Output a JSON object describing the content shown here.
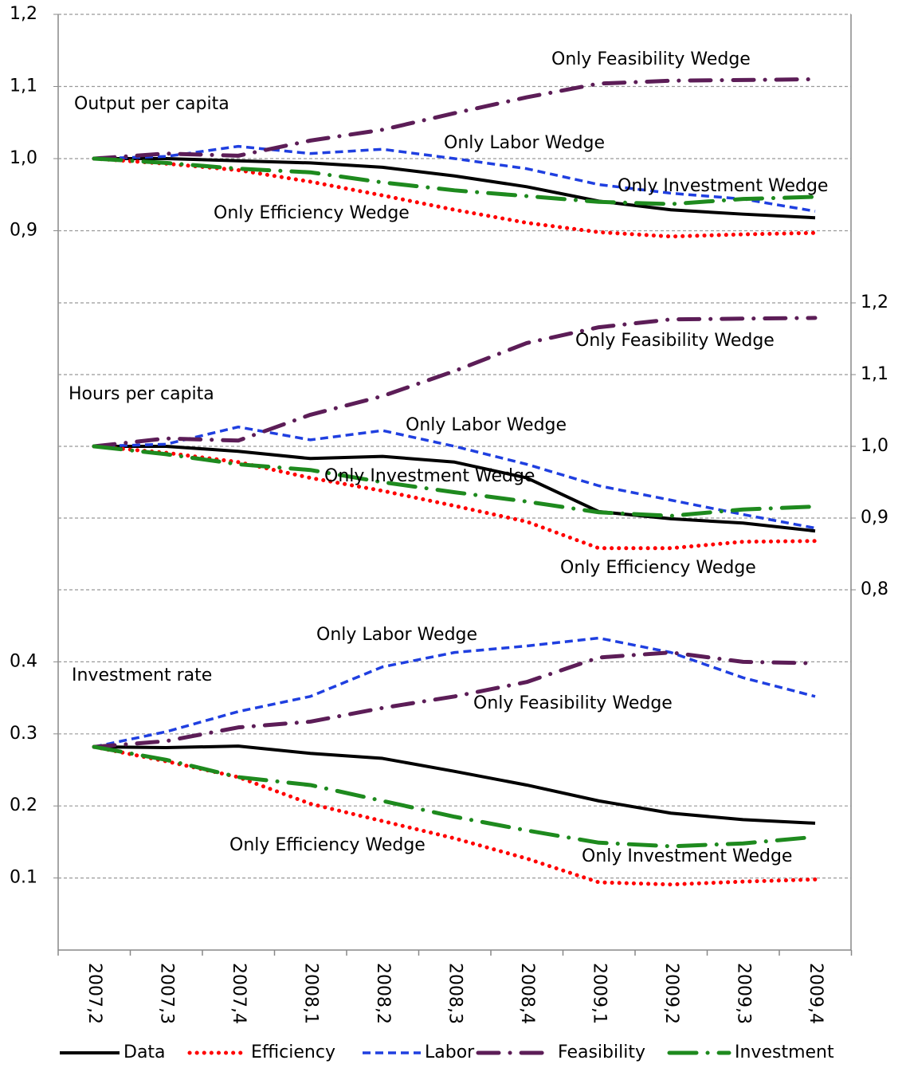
{
  "chart_data": {
    "type": "line",
    "categories": [
      "2007,2",
      "2007,3",
      "2007,4",
      "2008,1",
      "2008,2",
      "2008,3",
      "2008,4",
      "2009,1",
      "2009,2",
      "2009,3",
      "2009,4"
    ],
    "series": [
      {
        "name": "Data",
        "color": "#000000",
        "style": "solid"
      },
      {
        "name": "Efficiency",
        "color": "#ff0000",
        "style": "dotted"
      },
      {
        "name": "Labor",
        "color": "#1f3fe0",
        "style": "dashed"
      },
      {
        "name": "Feasibility",
        "color": "#5c1d57",
        "style": "dash-dot"
      },
      {
        "name": "Investment",
        "color": "#1e8a1e",
        "style": "long-dash-dot"
      }
    ],
    "grid": true,
    "panels": [
      {
        "title": "Output per capita",
        "y_axis": "left",
        "ylim": [
          0.8,
          1.2
        ],
        "yticks": [
          {
            "value": 0.9,
            "label": "0,9"
          },
          {
            "value": 1.0,
            "label": "1,0"
          },
          {
            "value": 1.1,
            "label": "1,1"
          },
          {
            "value": 1.2,
            "label": "1,2"
          }
        ],
        "lines": [
          [
            1.0,
            1.0,
            0.997,
            0.994,
            0.988,
            0.976,
            0.961,
            0.941,
            0.929,
            0.923,
            0.918
          ],
          [
            1.0,
            0.993,
            0.984,
            0.968,
            0.949,
            0.929,
            0.911,
            0.898,
            0.892,
            0.895,
            0.897
          ],
          [
            1.0,
            1.003,
            1.017,
            1.007,
            1.013,
            1.0,
            0.986,
            0.964,
            0.952,
            0.944,
            0.927
          ],
          [
            1.0,
            1.007,
            1.004,
            1.025,
            1.04,
            1.063,
            1.085,
            1.104,
            1.108,
            1.109,
            1.11
          ],
          [
            1.0,
            0.994,
            0.986,
            0.981,
            0.967,
            0.956,
            0.948,
            0.94,
            0.937,
            0.944,
            0.947
          ]
        ],
        "annotations": [
          {
            "text": "Only Feasibility Wedge",
            "color": "#7030a0"
          },
          {
            "text": "Only Labor Wedge",
            "color": "#1f497d"
          },
          {
            "text": "Only Investment Wedge",
            "color": "#4f6228"
          },
          {
            "text": "Only Efficiency Wedge",
            "color": "#ff0000"
          }
        ]
      },
      {
        "title": "Hours per capita",
        "y_axis": "right",
        "ylim": [
          0.8,
          1.2
        ],
        "yticks": [
          {
            "value": 0.8,
            "label": "0,8"
          },
          {
            "value": 0.9,
            "label": "0,9"
          },
          {
            "value": 1.0,
            "label": "1,0"
          },
          {
            "value": 1.1,
            "label": "1,1"
          },
          {
            "value": 1.2,
            "label": "1,2"
          }
        ],
        "lines": [
          [
            1.0,
            1.0,
            0.993,
            0.983,
            0.986,
            0.978,
            0.956,
            0.909,
            0.899,
            0.893,
            0.882
          ],
          [
            1.0,
            0.991,
            0.978,
            0.956,
            0.938,
            0.917,
            0.895,
            0.858,
            0.858,
            0.867,
            0.868
          ],
          [
            1.0,
            1.003,
            1.027,
            1.009,
            1.022,
            1.0,
            0.975,
            0.945,
            0.925,
            0.905,
            0.886
          ],
          [
            1.0,
            1.011,
            1.008,
            1.044,
            1.07,
            1.105,
            1.144,
            1.166,
            1.177,
            1.178,
            1.179
          ],
          [
            1.0,
            0.989,
            0.975,
            0.967,
            0.95,
            0.936,
            0.923,
            0.908,
            0.903,
            0.912,
            0.916
          ]
        ],
        "annotations": [
          {
            "text": "Only Feasibility Wedge",
            "color": "#7030a0"
          },
          {
            "text": "Only Labor Wedge",
            "color": "#1f497d"
          },
          {
            "text": "Only Investment Wedge",
            "color": "#4f6228"
          },
          {
            "text": "Only Efficiency Wedge",
            "color": "#ff0000"
          }
        ]
      },
      {
        "title": "Investment rate",
        "y_axis": "left",
        "ylim": [
          0,
          0.5
        ],
        "yticks": [
          0.1,
          0.2,
          0.3,
          0.4
        ],
        "lines": [
          [
            0.282,
            0.281,
            0.283,
            0.273,
            0.266,
            0.248,
            0.229,
            0.207,
            0.19,
            0.181,
            0.176
          ],
          [
            0.282,
            0.262,
            0.24,
            0.203,
            0.179,
            0.155,
            0.127,
            0.094,
            0.091,
            0.095,
            0.098
          ],
          [
            0.282,
            0.303,
            0.331,
            0.352,
            0.393,
            0.413,
            0.422,
            0.433,
            0.413,
            0.378,
            0.352
          ],
          [
            0.282,
            0.29,
            0.309,
            0.317,
            0.336,
            0.352,
            0.372,
            0.406,
            0.413,
            0.4,
            0.398
          ],
          [
            0.282,
            0.264,
            0.24,
            0.229,
            0.207,
            0.185,
            0.166,
            0.149,
            0.144,
            0.148,
            0.157
          ]
        ],
        "annotations": [
          {
            "text": "Only Labor Wedge",
            "color": "#1f497d"
          },
          {
            "text": "Only Feasibility Wedge",
            "color": "#7030a0"
          },
          {
            "text": "Only Efficiency Wedge",
            "color": "#ff0000"
          },
          {
            "text": "Only Investment Wedge",
            "color": "#4f6228"
          }
        ]
      }
    ]
  }
}
